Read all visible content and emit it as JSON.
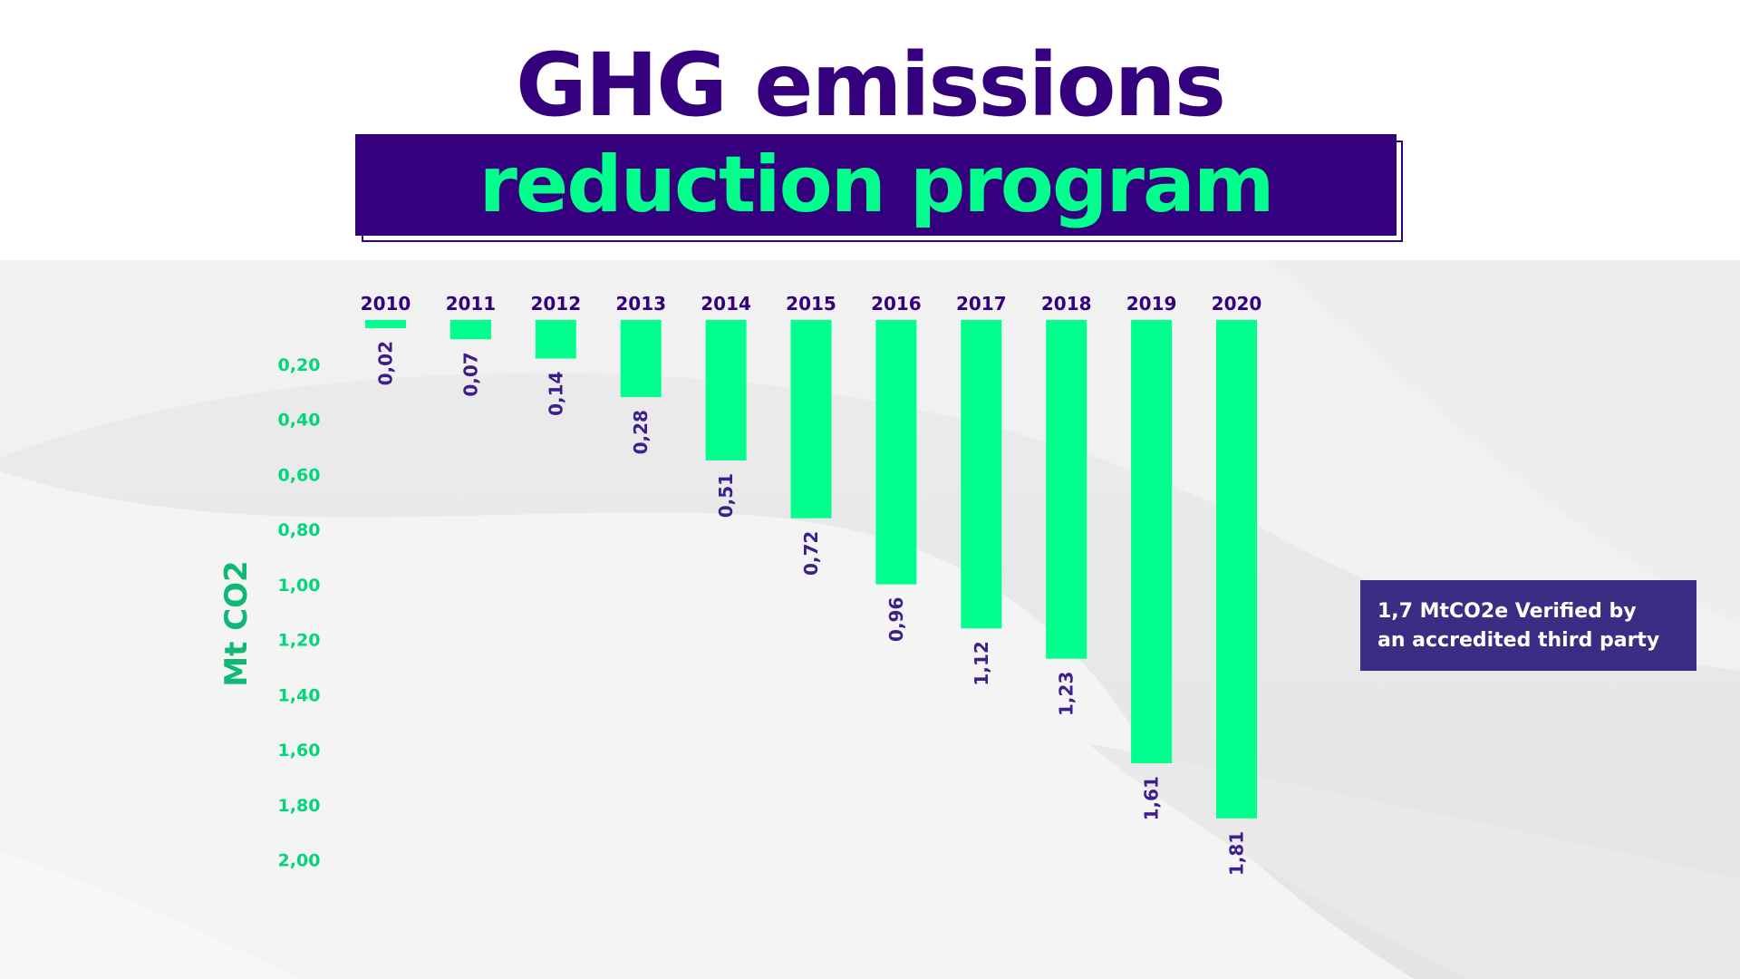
{
  "header": {
    "title": "GHG emissions",
    "subtitle": "reduction program"
  },
  "note": {
    "line1": "1,7 MtCO2e Verified by",
    "line2": "an accredited third party"
  },
  "colors": {
    "brand_purple": "#35007e",
    "accent_green": "#00ff8c",
    "axis_green": "#00d67a",
    "axis_title_green": "#0fb876",
    "label_purple": "#3d1f8c",
    "note_bg": "#3d2c84",
    "note_text": "#ffffff"
  },
  "chart_data": {
    "type": "bar",
    "orientation": "downward",
    "ylabel": "Mt CO2",
    "categories": [
      "2010",
      "2011",
      "2012",
      "2013",
      "2014",
      "2015",
      "2016",
      "2017",
      "2018",
      "2019",
      "2020"
    ],
    "values": [
      0.02,
      0.07,
      0.14,
      0.28,
      0.51,
      0.72,
      0.96,
      1.12,
      1.23,
      1.61,
      1.81
    ],
    "value_labels": [
      "0,02",
      "0,07",
      "0,14",
      "0,28",
      "0,51",
      "0,72",
      "0,96",
      "1,12",
      "1,23",
      "1,61",
      "1,81"
    ],
    "ylim": [
      0,
      2.0
    ],
    "y_ticks": [
      0.2,
      0.4,
      0.6,
      0.8,
      1.0,
      1.2,
      1.4,
      1.6,
      1.8,
      2.0
    ],
    "y_tick_labels": [
      "0,20",
      "0,40",
      "0,60",
      "0,80",
      "1,00",
      "1,20",
      "1,40",
      "1,60",
      "1,80",
      "2,00"
    ],
    "grid": false,
    "legend": "none"
  }
}
